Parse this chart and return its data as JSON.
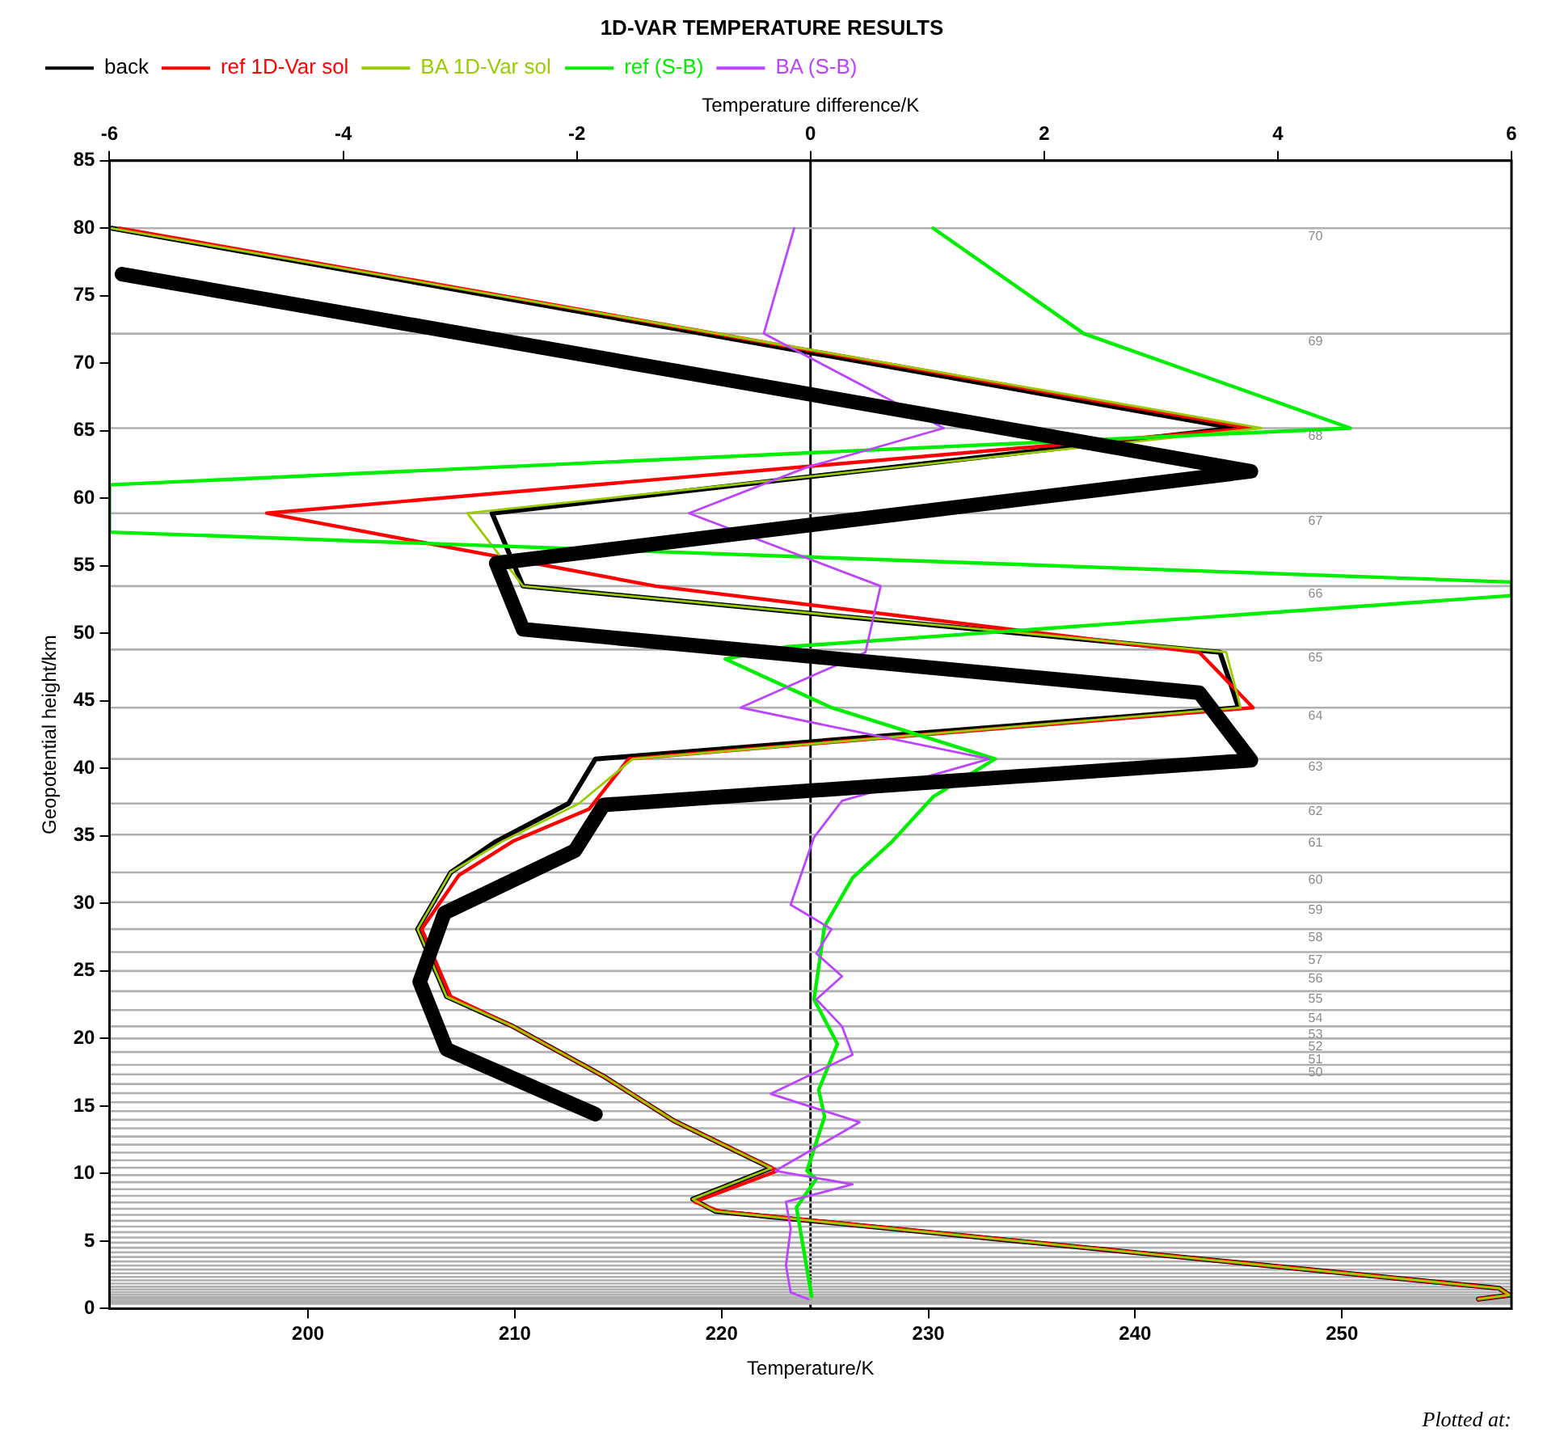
{
  "chart_data": {
    "type": "line",
    "title": "1D-VAR TEMPERATURE RESULTS",
    "xlabel": "Temperature/K",
    "x2label": "Temperature difference/K",
    "ylabel": "Geopotential height/km",
    "orientation": "horizontal",
    "marker": "none",
    "grid": false,
    "legend": "top left",
    "xlim": [
      190.4,
      258.2
    ],
    "xticks": [
      200,
      210,
      220,
      230,
      240,
      250
    ],
    "x2lim": [
      -6,
      6
    ],
    "x2ticks": [
      -6,
      -4,
      -2,
      0,
      2,
      4,
      6
    ],
    "ylim": [
      0,
      85
    ],
    "yticks": [
      0,
      5,
      10,
      15,
      20,
      25,
      30,
      35,
      40,
      45,
      50,
      55,
      60,
      65,
      70,
      75,
      80,
      85
    ],
    "series": [
      {
        "name": "back",
        "color": "#000000",
        "x": [
          80,
          65.2,
          58.9,
          53.5,
          48.6,
          44.5,
          40.7,
          37.4,
          34.6,
          32.3,
          28.1,
          23.1,
          20.9,
          17.2,
          13.9,
          10.4,
          8.1,
          7.2,
          1.5,
          1.0,
          0.7
        ],
        "values": [
          190.5,
          244.8,
          208.9,
          210.4,
          244.1,
          245.0,
          213.9,
          212.6,
          209.1,
          206.9,
          205.3,
          206.7,
          209.9,
          214.3,
          217.7,
          222.4,
          218.6,
          219.7,
          257.6,
          258.1,
          256.6
        ]
      },
      {
        "name": "ref 1D-Var sol",
        "color": "#ff0000",
        "x": [
          80,
          65.2,
          58.9,
          53.5,
          48.6,
          44.5,
          40.7,
          37.0,
          34.6,
          32.1,
          28.1,
          23.1,
          20.9,
          17.2,
          13.9,
          10.2,
          7.9,
          7.2,
          1.5,
          1.0,
          0.7
        ],
        "values": [
          190.9,
          245.6,
          198.0,
          216.8,
          243.1,
          245.7,
          215.5,
          213.6,
          209.9,
          207.3,
          205.5,
          206.9,
          209.9,
          214.3,
          217.7,
          222.7,
          218.7,
          219.9,
          257.6,
          258.1,
          256.6
        ]
      },
      {
        "name": "BA 1D-Var sol",
        "color": "#99cc00",
        "x": [
          80,
          65.2,
          58.9,
          53.5,
          48.6,
          44.5,
          40.7,
          37.4,
          34.6,
          32.3,
          28.1,
          23.1,
          20.9,
          17.2,
          13.9,
          10.4,
          8.1,
          7.2,
          1.5,
          1.0,
          0.7
        ],
        "values": [
          190.5,
          246.1,
          207.7,
          210.4,
          244.4,
          245.1,
          215.7,
          213.1,
          209.4,
          206.9,
          205.3,
          206.7,
          209.9,
          214.3,
          217.7,
          222.4,
          218.6,
          219.7,
          257.6,
          258.1,
          256.6
        ]
      },
      {
        "name": "ref (S-B)",
        "color": "#00ee00",
        "axis": "x2",
        "x": [
          80,
          72.2,
          65.2,
          61.0,
          57.5,
          53.8,
          52.8,
          49.0,
          48.1,
          44.5,
          40.7,
          37.9,
          34.6,
          31.9,
          28.3,
          22.9,
          19.6,
          16.2,
          14.2,
          10.2,
          9.6,
          7.5,
          2.9,
          0.9
        ],
        "values": [
          1.05,
          2.34,
          4.62,
          -6,
          -6,
          6,
          6,
          -0.21,
          -0.73,
          0.18,
          1.58,
          1.05,
          0.7,
          0.36,
          0.12,
          0.03,
          0.23,
          0.07,
          0.12,
          -0.03,
          0.05,
          -0.12,
          -0.03,
          0.01
        ]
      },
      {
        "name": "BA (S-B)",
        "color": "#bb44ff",
        "axis": "x2",
        "x": [
          80,
          72.2,
          65.2,
          62.3,
          58.9,
          53.5,
          48.6,
          44.5,
          40.7,
          37.6,
          34.9,
          29.9,
          28.1,
          26.3,
          24.6,
          22.9,
          20.9,
          18.8,
          15.9,
          13.8,
          10.2,
          9.2,
          7.9,
          5.9,
          3.2,
          1.2,
          0.7
        ],
        "values": [
          -0.14,
          -0.4,
          1.14,
          -0.03,
          -1.04,
          0.6,
          0.47,
          -0.6,
          1.53,
          0.27,
          0.03,
          -0.17,
          0.18,
          0.05,
          0.27,
          0.05,
          0.27,
          0.36,
          -0.34,
          0.42,
          -0.3,
          0.36,
          -0.21,
          -0.17,
          -0.21,
          -0.17,
          -0.02
        ]
      },
      {
        "color": "#000000",
        "x": [
          76.6,
          62.0,
          55.2,
          50.3,
          45.6,
          40.6,
          37.3,
          33.9,
          29.3,
          24.2,
          19.2,
          14.4
        ],
        "values": [
          191.0,
          245.6,
          209.1,
          210.4,
          243.1,
          245.6,
          214.3,
          212.9,
          206.6,
          205.4,
          206.7,
          213.9
        ]
      }
    ],
    "ref_lines": [
      {
        "axis": "x2",
        "value": 0,
        "color": "#000000"
      },
      {
        "axis": "y",
        "value": 80,
        "color": "#b0b0b0"
      },
      {
        "axis": "y",
        "value": 72.2,
        "color": "#b0b0b0"
      },
      {
        "axis": "y",
        "value": 65.2,
        "color": "#b0b0b0"
      },
      {
        "axis": "y",
        "value": 58.9,
        "color": "#b0b0b0"
      },
      {
        "axis": "y",
        "value": 53.5,
        "color": "#b0b0b0"
      },
      {
        "axis": "y",
        "value": 48.8,
        "color": "#b0b0b0"
      },
      {
        "axis": "y",
        "value": 44.5,
        "color": "#b0b0b0"
      },
      {
        "axis": "y",
        "value": 40.7,
        "color": "#b0b0b0"
      },
      {
        "axis": "y",
        "value": 37.4,
        "color": "#b0b0b0"
      },
      {
        "axis": "y",
        "value": 35.1,
        "color": "#b0b0b0"
      },
      {
        "axis": "y",
        "value": 32.3,
        "color": "#b0b0b0"
      },
      {
        "axis": "y",
        "value": 30.1,
        "color": "#b0b0b0"
      },
      {
        "axis": "y",
        "value": 28.1,
        "color": "#b0b0b0"
      },
      {
        "axis": "y",
        "value": 26.4,
        "color": "#b0b0b0"
      },
      {
        "axis": "y",
        "value": 25.0,
        "color": "#b0b0b0"
      },
      {
        "axis": "y",
        "value": 23.5,
        "color": "#b0b0b0"
      },
      {
        "axis": "y",
        "value": 22.1,
        "color": "#b0b0b0"
      },
      {
        "axis": "y",
        "value": 20.9,
        "color": "#b0b0b0"
      },
      {
        "axis": "y",
        "value": 20.0,
        "color": "#b0b0b0"
      },
      {
        "axis": "y",
        "value": 19.0,
        "color": "#b0b0b0"
      },
      {
        "axis": "y",
        "value": 18.05,
        "color": "#b0b0b0"
      },
      {
        "axis": "y",
        "value": 17.34,
        "color": "#b0b0b0"
      },
      {
        "axis": "y",
        "value": 16.63,
        "color": "#b0b0b0"
      },
      {
        "axis": "y",
        "value": 15.95,
        "color": "#b0b0b0"
      },
      {
        "axis": "y",
        "value": 15.28,
        "color": "#b0b0b0"
      },
      {
        "axis": "y",
        "value": 14.62,
        "color": "#b0b0b0"
      },
      {
        "axis": "y",
        "value": 13.98,
        "color": "#b0b0b0"
      },
      {
        "axis": "y",
        "value": 13.35,
        "color": "#b0b0b0"
      },
      {
        "axis": "y",
        "value": 12.74,
        "color": "#b0b0b0"
      },
      {
        "axis": "y",
        "value": 12.14,
        "color": "#b0b0b0"
      },
      {
        "axis": "y",
        "value": 11.55,
        "color": "#b0b0b0"
      },
      {
        "axis": "y",
        "value": 10.98,
        "color": "#b0b0b0"
      },
      {
        "axis": "y",
        "value": 10.43,
        "color": "#b0b0b0"
      },
      {
        "axis": "y",
        "value": 9.88,
        "color": "#b0b0b0"
      },
      {
        "axis": "y",
        "value": 9.36,
        "color": "#b0b0b0"
      },
      {
        "axis": "y",
        "value": 8.84,
        "color": "#b0b0b0"
      },
      {
        "axis": "y",
        "value": 8.35,
        "color": "#b0b0b0"
      },
      {
        "axis": "y",
        "value": 7.86,
        "color": "#b0b0b0"
      },
      {
        "axis": "y",
        "value": 7.39,
        "color": "#b0b0b0"
      },
      {
        "axis": "y",
        "value": 6.94,
        "color": "#b0b0b0"
      },
      {
        "axis": "y",
        "value": 6.5,
        "color": "#b0b0b0"
      },
      {
        "axis": "y",
        "value": 6.07,
        "color": "#b0b0b0"
      },
      {
        "axis": "y",
        "value": 5.66,
        "color": "#b0b0b0"
      },
      {
        "axis": "y",
        "value": 5.26,
        "color": "#b0b0b0"
      },
      {
        "axis": "y",
        "value": 4.88,
        "color": "#b0b0b0"
      },
      {
        "axis": "y",
        "value": 4.51,
        "color": "#b0b0b0"
      },
      {
        "axis": "y",
        "value": 4.16,
        "color": "#b0b0b0"
      },
      {
        "axis": "y",
        "value": 3.82,
        "color": "#b0b0b0"
      },
      {
        "axis": "y",
        "value": 3.49,
        "color": "#b0b0b0"
      },
      {
        "axis": "y",
        "value": 3.18,
        "color": "#b0b0b0"
      },
      {
        "axis": "y",
        "value": 2.89,
        "color": "#b0b0b0"
      },
      {
        "axis": "y",
        "value": 2.61,
        "color": "#b0b0b0"
      },
      {
        "axis": "y",
        "value": 2.34,
        "color": "#b0b0b0"
      },
      {
        "axis": "y",
        "value": 2.09,
        "color": "#b0b0b0"
      },
      {
        "axis": "y",
        "value": 1.85,
        "color": "#b0b0b0"
      },
      {
        "axis": "y",
        "value": 1.62,
        "color": "#b0b0b0"
      },
      {
        "axis": "y",
        "value": 1.42,
        "color": "#b0b0b0"
      },
      {
        "axis": "y",
        "value": 1.22,
        "color": "#b0b0b0"
      },
      {
        "axis": "y",
        "value": 1.04,
        "color": "#b0b0b0"
      },
      {
        "axis": "y",
        "value": 0.87,
        "color": "#b0b0b0"
      },
      {
        "axis": "y",
        "value": 0.72,
        "color": "#b0b0b0"
      },
      {
        "axis": "y",
        "value": 0.58,
        "color": "#b0b0b0"
      },
      {
        "axis": "y",
        "value": 0.46,
        "color": "#b0b0b0"
      },
      {
        "axis": "y",
        "value": 0.35,
        "color": "#b0b0b0"
      }
    ],
    "annotations": [
      "Plotted at:",
      {
        "text": "70",
        "y": 80
      },
      {
        "text": "69",
        "y": 72.2
      },
      {
        "text": "68",
        "y": 65.2
      },
      {
        "text": "67",
        "y": 58.9
      },
      {
        "text": "66",
        "y": 53.5
      },
      {
        "text": "65",
        "y": 48.8
      },
      {
        "text": "64",
        "y": 44.5
      },
      {
        "text": "63",
        "y": 40.7
      },
      {
        "text": "62",
        "y": 37.4
      },
      {
        "text": "61",
        "y": 35.1
      },
      {
        "text": "60",
        "y": 32.3
      },
      {
        "text": "59",
        "y": 30.1
      },
      {
        "text": "58",
        "y": 28.1
      },
      {
        "text": "57",
        "y": 26.4
      },
      {
        "text": "56",
        "y": 25.0
      },
      {
        "text": "55",
        "y": 23.5
      },
      {
        "text": "54",
        "y": 22.1
      },
      {
        "text": "53",
        "y": 20.9
      },
      {
        "text": "52",
        "y": 20.0
      },
      {
        "text": "51",
        "y": 19.0
      },
      {
        "text": "50",
        "y": 18.05
      }
    ]
  }
}
